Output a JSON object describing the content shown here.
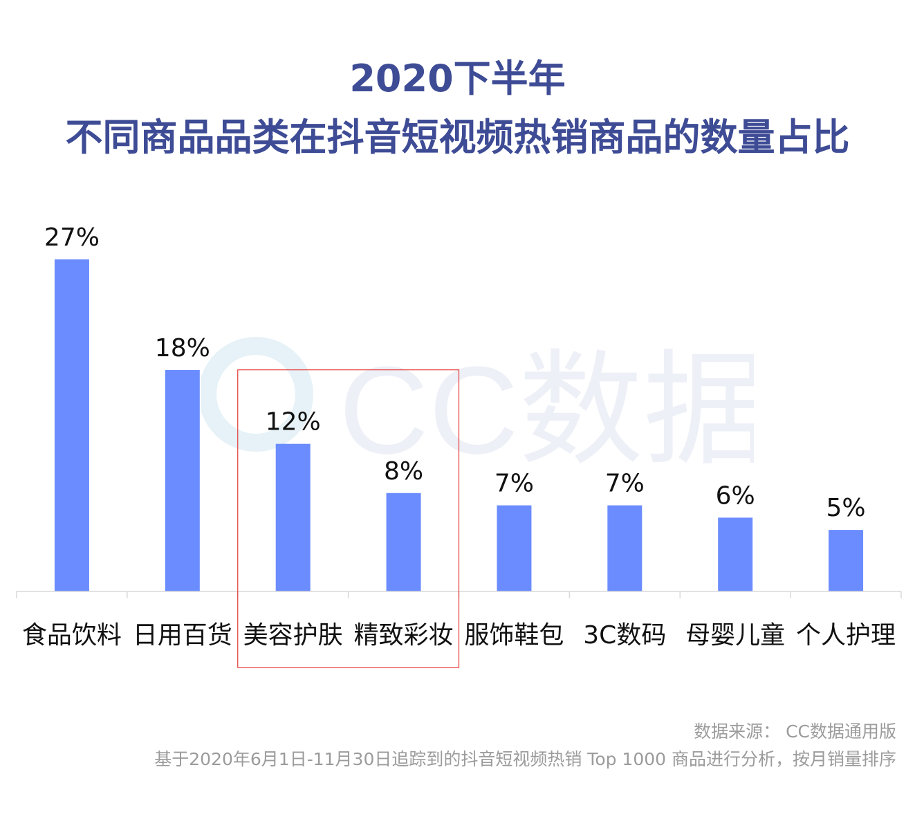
{
  "title": {
    "line1": "2020下半年",
    "line2": "不同商品品类在抖音短视频热销商品的数量占比"
  },
  "chart_data": {
    "type": "bar",
    "categories": [
      "食品饮料",
      "日用百货",
      "美容护肤",
      "精致彩妆",
      "服饰鞋包",
      "3C数码",
      "母婴儿童",
      "个人护理"
    ],
    "values": [
      27,
      18,
      12,
      8,
      7,
      7,
      6,
      5
    ],
    "data_labels": [
      "27%",
      "18%",
      "12%",
      "8%",
      "7%",
      "7%",
      "6%",
      "5%"
    ],
    "unit": "%",
    "ylim": [
      0,
      30
    ],
    "grid": false,
    "bar_color": "#6b8cff",
    "highlight": {
      "categories": [
        "美容护肤",
        "精致彩妆"
      ],
      "color": "#e53935"
    }
  },
  "watermark": {
    "text": "CC数据"
  },
  "footer": {
    "source": "数据来源： CC数据通用版",
    "note": "基于2020年6月1日-11月30日追踪到的抖音短视频热销 Top 1000 商品进行分析，按月销量排序"
  }
}
